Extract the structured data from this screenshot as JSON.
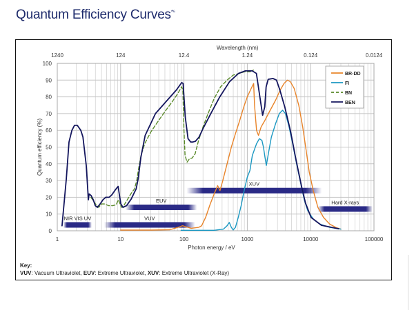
{
  "page": {
    "title": "Quantum Efficiency Curves",
    "title_superscript": "*⁶"
  },
  "key": {
    "heading": "Key:",
    "items": [
      {
        "abbr": "VUV",
        "text": ": Vacuum Ultraviolet, "
      },
      {
        "abbr": "EUV",
        "text": ": Extreme Ultraviolet, "
      },
      {
        "abbr": "XUV",
        "text": ": Extreme Ultraviolet (X-Ray)"
      }
    ]
  },
  "chart_data": {
    "type": "line",
    "title": "Quantum Efficiency Curves",
    "xlabel": "Photon energy / eV",
    "ylabel": "Quantum efficiency (%)",
    "x2label": "Wavelength (nm)",
    "xscale": "log",
    "xlim": [
      1,
      100000
    ],
    "ylim": [
      0,
      100
    ],
    "x_ticks": [
      1,
      10,
      100,
      1000,
      10000,
      100000
    ],
    "x_tick_labels": [
      "1",
      "10",
      "100",
      "1000",
      "10000",
      "100000"
    ],
    "x2_tick_positions_eV": [
      1,
      10,
      100,
      1000,
      10000,
      100000
    ],
    "x2_tick_labels": [
      "1240",
      "124",
      "12.4",
      "1.24",
      "0.124",
      "0.0124"
    ],
    "y_ticks": [
      0,
      10,
      20,
      30,
      40,
      50,
      60,
      70,
      80,
      90,
      100
    ],
    "y_tick_labels": [
      "0",
      "10",
      "20",
      "30",
      "40",
      "50",
      "60",
      "70",
      "80",
      "90",
      "100"
    ],
    "grid": true,
    "legend_position": "top-right",
    "series": [
      {
        "name": "BR-DD",
        "color": "#e8842a",
        "dash": false,
        "points": [
          [
            10,
            0.4
          ],
          [
            30,
            0.4
          ],
          [
            60,
            0.6
          ],
          [
            80,
            2
          ],
          [
            95,
            3
          ],
          [
            105,
            2.5
          ],
          [
            130,
            1.5
          ],
          [
            170,
            2
          ],
          [
            190,
            3
          ],
          [
            220,
            8
          ],
          [
            260,
            16
          ],
          [
            300,
            22
          ],
          [
            340,
            27
          ],
          [
            370,
            24
          ],
          [
            410,
            30
          ],
          [
            480,
            40
          ],
          [
            560,
            50
          ],
          [
            650,
            58
          ],
          [
            760,
            66
          ],
          [
            880,
            74
          ],
          [
            1000,
            80
          ],
          [
            1150,
            85
          ],
          [
            1260,
            88
          ],
          [
            1300,
            75
          ],
          [
            1400,
            60
          ],
          [
            1500,
            57
          ],
          [
            1650,
            62
          ],
          [
            1900,
            66
          ],
          [
            2300,
            72
          ],
          [
            2800,
            78
          ],
          [
            3300,
            84
          ],
          [
            3800,
            88
          ],
          [
            4300,
            90
          ],
          [
            4800,
            89
          ],
          [
            5500,
            85
          ],
          [
            6500,
            75
          ],
          [
            7500,
            62
          ],
          [
            8500,
            48
          ],
          [
            9500,
            35
          ],
          [
            11000,
            24
          ],
          [
            13000,
            14
          ],
          [
            16000,
            8
          ],
          [
            20000,
            4
          ],
          [
            25000,
            2
          ],
          [
            30000,
            1
          ]
        ]
      },
      {
        "name": "FI",
        "color": "#1b98c2",
        "dash": false,
        "points": [
          [
            90,
            0.3
          ],
          [
            300,
            0.3
          ],
          [
            420,
            1
          ],
          [
            480,
            3
          ],
          [
            520,
            5
          ],
          [
            560,
            2
          ],
          [
            600,
            0.5
          ],
          [
            650,
            2
          ],
          [
            720,
            8
          ],
          [
            800,
            15
          ],
          [
            870,
            22
          ],
          [
            930,
            27
          ],
          [
            1000,
            32
          ],
          [
            1100,
            36
          ],
          [
            1200,
            45
          ],
          [
            1400,
            52
          ],
          [
            1550,
            55
          ],
          [
            1700,
            54
          ],
          [
            1800,
            50
          ],
          [
            1900,
            44
          ],
          [
            2000,
            39
          ],
          [
            2150,
            46
          ],
          [
            2400,
            56
          ],
          [
            2800,
            64
          ],
          [
            3200,
            70
          ],
          [
            3600,
            72
          ],
          [
            4000,
            70
          ],
          [
            4500,
            63
          ],
          [
            5200,
            52
          ],
          [
            6000,
            40
          ],
          [
            7000,
            28
          ],
          [
            8000,
            18
          ],
          [
            9000,
            12
          ],
          [
            11000,
            7
          ],
          [
            14000,
            4
          ],
          [
            20000,
            2
          ],
          [
            30000,
            1
          ]
        ]
      },
      {
        "name": "BN",
        "color": "#5a8a2a",
        "dash": true,
        "points": [
          [
            3.4,
            20
          ],
          [
            3.7,
            18
          ],
          [
            4.1,
            15.5
          ],
          [
            4.5,
            14
          ],
          [
            5.0,
            16
          ],
          [
            5.6,
            16
          ],
          [
            6.5,
            15
          ],
          [
            7.5,
            15
          ],
          [
            8.5,
            15.5
          ],
          [
            9.2,
            18.5
          ],
          [
            10.3,
            14
          ],
          [
            11,
            14.5
          ],
          [
            12.5,
            18
          ],
          [
            14.5,
            22
          ],
          [
            16.5,
            25
          ],
          [
            18,
            30
          ],
          [
            19,
            36
          ],
          [
            21,
            45
          ],
          [
            24,
            52
          ],
          [
            30,
            59
          ],
          [
            40,
            66
          ],
          [
            52,
            72
          ],
          [
            65,
            77
          ],
          [
            80,
            82
          ],
          [
            92,
            86
          ],
          [
            96,
            84
          ],
          [
            100,
            60
          ],
          [
            104,
            45
          ],
          [
            112,
            41
          ],
          [
            122,
            43
          ],
          [
            135,
            43.5
          ],
          [
            150,
            46
          ],
          [
            170,
            54
          ],
          [
            200,
            62
          ],
          [
            240,
            70
          ],
          [
            300,
            79
          ],
          [
            380,
            86
          ],
          [
            480,
            90
          ],
          [
            600,
            93
          ],
          [
            750,
            94
          ],
          [
            900,
            95
          ],
          [
            1100,
            95
          ],
          [
            1250,
            96
          ]
        ]
      },
      {
        "name": "BEN",
        "color": "#14165e",
        "dash": false,
        "points": [
          [
            1.19,
            3
          ],
          [
            1.39,
            31
          ],
          [
            1.53,
            53
          ],
          [
            1.7,
            60
          ],
          [
            1.87,
            63
          ],
          [
            2.07,
            63
          ],
          [
            2.35,
            60
          ],
          [
            2.54,
            56
          ],
          [
            2.87,
            39
          ],
          [
            3.1,
            18.5
          ],
          [
            3.18,
            22
          ],
          [
            3.43,
            21
          ],
          [
            3.7,
            18.5
          ],
          [
            3.98,
            15
          ],
          [
            4.3,
            14
          ],
          [
            4.75,
            16
          ],
          [
            5.26,
            18.5
          ],
          [
            5.81,
            20
          ],
          [
            6.59,
            20
          ],
          [
            7.28,
            21.5
          ],
          [
            8.26,
            24.5
          ],
          [
            9.14,
            26.5
          ],
          [
            9.6,
            21
          ],
          [
            10.1,
            16
          ],
          [
            10.9,
            14
          ],
          [
            12.4,
            15
          ],
          [
            14.7,
            19
          ],
          [
            16.3,
            22.5
          ],
          [
            17.6,
            25
          ],
          [
            18.9,
            31
          ],
          [
            20.9,
            44
          ],
          [
            24.4,
            57
          ],
          [
            35.5,
            70
          ],
          [
            51.7,
            77
          ],
          [
            75.5,
            84
          ],
          [
            92.3,
            88.5
          ],
          [
            97,
            88
          ],
          [
            105,
            68
          ],
          [
            116,
            55
          ],
          [
            128,
            53
          ],
          [
            138,
            53
          ],
          [
            152,
            53.5
          ],
          [
            173,
            56
          ],
          [
            206,
            62
          ],
          [
            265,
            70
          ],
          [
            368,
            80
          ],
          [
            523,
            89
          ],
          [
            725,
            94
          ],
          [
            931,
            95.5
          ],
          [
            1199,
            95.5
          ],
          [
            1394,
            94
          ],
          [
            1621,
            77
          ],
          [
            1747,
            69
          ],
          [
            1884,
            74
          ],
          [
            1982,
            86
          ],
          [
            2137,
            90.5
          ],
          [
            2548,
            91
          ],
          [
            2890,
            90
          ],
          [
            3276,
            84
          ],
          [
            3906,
            74
          ],
          [
            4779,
            60
          ],
          [
            5838,
            43
          ],
          [
            7323,
            25
          ],
          [
            8304,
            16.5
          ],
          [
            10160,
            8
          ],
          [
            14800,
            3.3
          ],
          [
            27750,
            1.2
          ]
        ]
      }
    ],
    "bands": [
      {
        "label": "NIR  VIS UV",
        "start_eV": 1.25,
        "end_eV": 3.5,
        "qe_level": 3.5
      },
      {
        "label": "VUV",
        "start_eV": 5.5,
        "end_eV": 150,
        "qe_level": 3.5
      },
      {
        "label": "EUV",
        "start_eV": 12,
        "end_eV": 160,
        "qe_level": 14
      },
      {
        "label": "XUV",
        "start_eV": 110,
        "end_eV": 15000,
        "qe_level": 24
      },
      {
        "label": "Hard X-rays",
        "start_eV": 13000,
        "end_eV": 95000,
        "qe_level": 13
      }
    ]
  }
}
